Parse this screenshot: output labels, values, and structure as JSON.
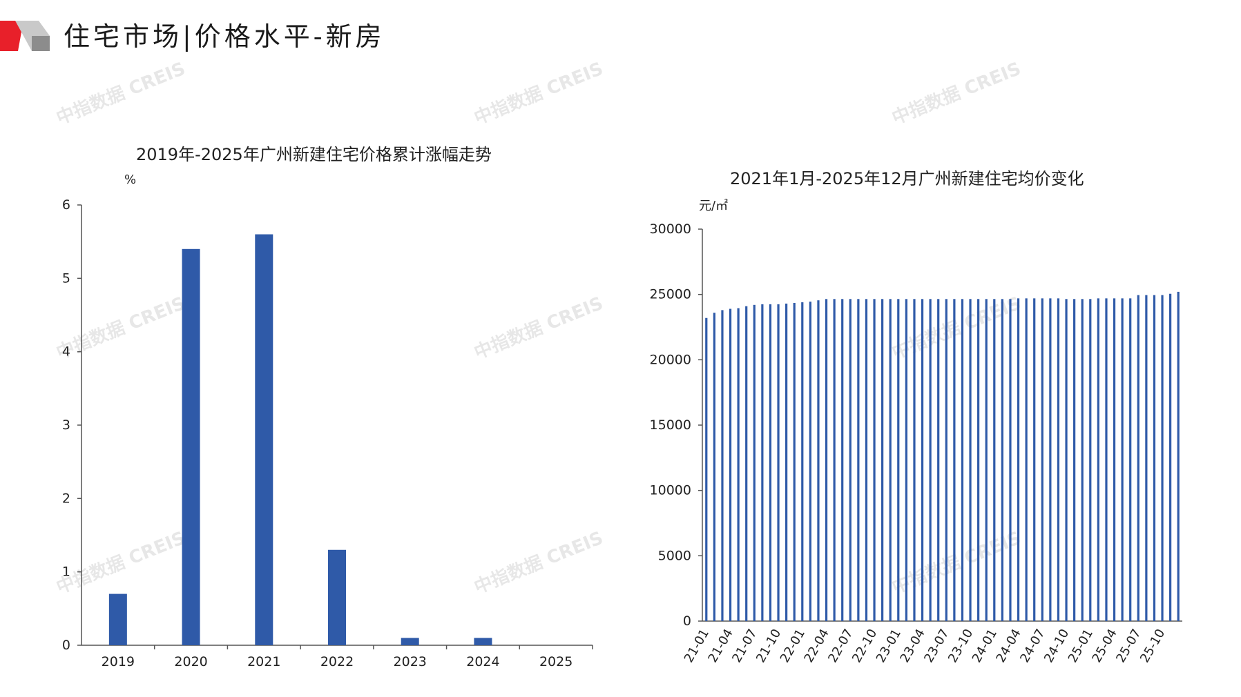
{
  "header": {
    "title": "住宅市场|价格水平-新房",
    "colors": {
      "red": "#e8202a",
      "gray": "#8c8c8c",
      "light": "#c9c9c9"
    }
  },
  "watermarks": [
    "中指数据 CREIS",
    "中指数据 CREIS",
    "中指数据 CREIS",
    "中指数据 CREIS",
    "中指数据 CREIS",
    "中指数据 CREIS",
    "中指数据 CREIS",
    "中指数据 CREIS",
    "中指数据 CREIS"
  ],
  "chart_data": [
    {
      "type": "bar",
      "title": "2019年-2025年广州新建住宅价格累计涨幅走势",
      "ylabel": "%",
      "xlabel": "",
      "categories": [
        "2019",
        "2020",
        "2021",
        "2022",
        "2023",
        "2024",
        "2025"
      ],
      "values": [
        0.7,
        5.4,
        5.6,
        1.3,
        0.1,
        0.1,
        0
      ],
      "ylim": [
        0,
        6
      ],
      "yticks": [
        0,
        1,
        2,
        3,
        4,
        5,
        6
      ],
      "color": "#2f5aa8",
      "grid": false
    },
    {
      "type": "bar",
      "title": "2021年1月-2025年12月广州新建住宅均价变化",
      "ylabel": "元/㎡",
      "xlabel": "",
      "ylim": [
        0,
        30000
      ],
      "yticks": [
        0,
        5000,
        10000,
        15000,
        20000,
        25000,
        30000
      ],
      "color": "#2f5aa8",
      "grid": false,
      "tick_labels": [
        "21-01",
        "21-04",
        "21-07",
        "21-10",
        "22-01",
        "22-04",
        "22-07",
        "22-10",
        "23-01",
        "23-04",
        "23-07",
        "23-10",
        "24-01",
        "24-04",
        "24-07",
        "24-10",
        "25-01",
        "25-04",
        "25-07",
        "25-10"
      ],
      "categories": [
        "21-01",
        "21-02",
        "21-03",
        "21-04",
        "21-05",
        "21-06",
        "21-07",
        "21-08",
        "21-09",
        "21-10",
        "21-11",
        "21-12",
        "22-01",
        "22-02",
        "22-03",
        "22-04",
        "22-05",
        "22-06",
        "22-07",
        "22-08",
        "22-09",
        "22-10",
        "22-11",
        "22-12",
        "23-01",
        "23-02",
        "23-03",
        "23-04",
        "23-05",
        "23-06",
        "23-07",
        "23-08",
        "23-09",
        "23-10",
        "23-11",
        "23-12",
        "24-01",
        "24-02",
        "24-03",
        "24-04",
        "24-05",
        "24-06",
        "24-07",
        "24-08",
        "24-09",
        "24-10",
        "24-11",
        "24-12",
        "25-01",
        "25-02",
        "25-03",
        "25-04",
        "25-05",
        "25-06",
        "25-07",
        "25-08",
        "25-09",
        "25-10",
        "25-11",
        "25-12"
      ],
      "values": [
        23200,
        23600,
        23800,
        23900,
        23950,
        24100,
        24200,
        24250,
        24250,
        24250,
        24300,
        24350,
        24400,
        24450,
        24550,
        24650,
        24650,
        24650,
        24650,
        24650,
        24650,
        24650,
        24650,
        24650,
        24650,
        24650,
        24650,
        24650,
        24650,
        24650,
        24650,
        24650,
        24650,
        24650,
        24650,
        24650,
        24650,
        24650,
        24650,
        24700,
        24700,
        24700,
        24700,
        24700,
        24700,
        24650,
        24650,
        24650,
        24650,
        24700,
        24700,
        24700,
        24700,
        24700,
        24950,
        24950,
        24950,
        24950,
        25050,
        25200
      ]
    }
  ]
}
